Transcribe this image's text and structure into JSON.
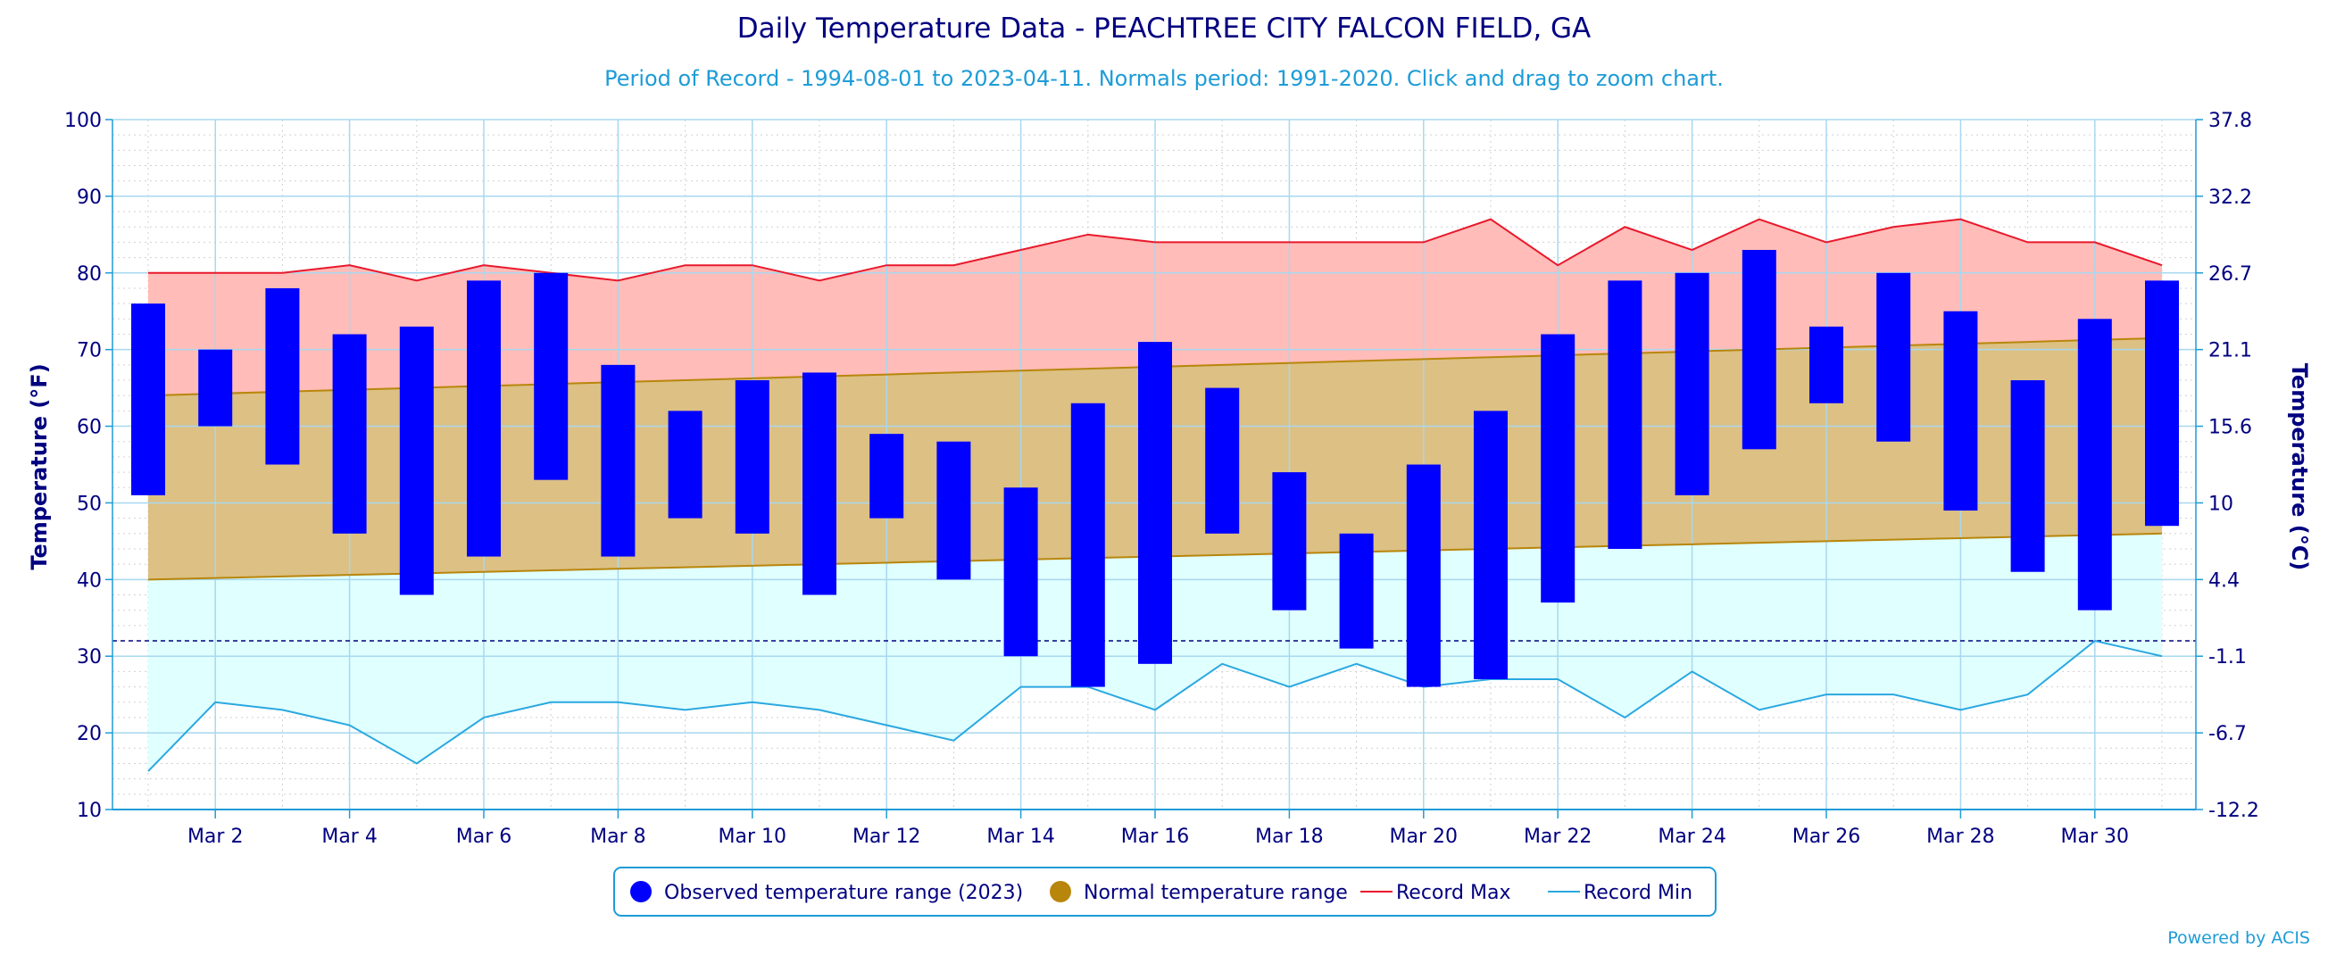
{
  "chart_data": {
    "type": "bar",
    "title": "Daily Temperature Data - PEACHTREE CITY FALCON FIELD, GA",
    "subtitle": "Period of Record - 1994-08-01 to 2023-04-11. Normals period: 1991-2020. Click and drag to zoom chart.",
    "credit": "Powered by ACIS",
    "ylabel": "Temperature (°F)",
    "ylabel_right": "Temperature (°C)",
    "ylim": [
      10,
      100
    ],
    "yticks": [
      10,
      20,
      30,
      40,
      50,
      60,
      70,
      80,
      90,
      100
    ],
    "yticks_right": [
      "-12.2",
      "-6.7",
      "-1.1",
      "4.4",
      "10",
      "15.6",
      "21.1",
      "26.7",
      "32.2",
      "37.8"
    ],
    "freezing_line": 32,
    "days": [
      1,
      2,
      3,
      4,
      5,
      6,
      7,
      8,
      9,
      10,
      11,
      12,
      13,
      14,
      15,
      16,
      17,
      18,
      19,
      20,
      21,
      22,
      23,
      24,
      25,
      26,
      27,
      28,
      29,
      30,
      31
    ],
    "xtick_days": [
      2,
      4,
      6,
      8,
      10,
      12,
      14,
      16,
      18,
      20,
      22,
      24,
      26,
      28,
      30
    ],
    "xtick_labels": [
      "Mar 2",
      "Mar 4",
      "Mar 6",
      "Mar 8",
      "Mar 10",
      "Mar 12",
      "Mar 14",
      "Mar 16",
      "Mar 18",
      "Mar 20",
      "Mar 22",
      "Mar 24",
      "Mar 26",
      "Mar 28",
      "Mar 30"
    ],
    "grid": true,
    "legend_position": "bottom-center",
    "series": [
      {
        "name": "Observed temperature range (2023)",
        "type": "range-bar",
        "color": "#0000ff",
        "low": [
          51,
          60,
          55,
          46,
          38,
          43,
          53,
          43,
          48,
          46,
          38,
          48,
          40,
          30,
          26,
          29,
          46,
          36,
          31,
          26,
          27,
          37,
          44,
          51,
          57,
          63,
          58,
          49,
          41,
          36,
          47
        ],
        "high": [
          76,
          70,
          78,
          72,
          73,
          79,
          80,
          68,
          62,
          66,
          67,
          59,
          58,
          52,
          63,
          71,
          65,
          54,
          46,
          55,
          62,
          72,
          79,
          80,
          83,
          73,
          80,
          75,
          66,
          74,
          79
        ]
      },
      {
        "name": "Normal temperature range",
        "type": "area-range",
        "color": "#b8860b",
        "fill": "#dcc084",
        "low": [
          40,
          40.2,
          40.4,
          40.6,
          40.8,
          41,
          41.2,
          41.4,
          41.6,
          41.8,
          42,
          42.2,
          42.4,
          42.6,
          42.8,
          43,
          43.2,
          43.4,
          43.6,
          43.8,
          44,
          44.2,
          44.4,
          44.6,
          44.8,
          45,
          45.2,
          45.4,
          45.6,
          45.8,
          46
        ],
        "high": [
          64,
          64.25,
          64.5,
          64.75,
          65,
          65.25,
          65.5,
          65.75,
          66,
          66.25,
          66.5,
          66.75,
          67,
          67.25,
          67.5,
          67.75,
          68,
          68.25,
          68.5,
          68.75,
          69,
          69.25,
          69.5,
          69.75,
          70,
          70.25,
          70.5,
          70.75,
          71,
          71.25,
          71.5
        ]
      },
      {
        "name": "Record Max",
        "type": "line",
        "color": "#e8192c",
        "fill": "#ffbcb8",
        "values": [
          80,
          80,
          80,
          81,
          79,
          81,
          80,
          79,
          81,
          81,
          79,
          81,
          81,
          83,
          85,
          84,
          84,
          84,
          84,
          84,
          87,
          81,
          86,
          83,
          87,
          84,
          86,
          87,
          84,
          84,
          81
        ]
      },
      {
        "name": "Record Min",
        "type": "line",
        "color": "#2aa8e0",
        "fill": "#e0ffff",
        "values": [
          15,
          24,
          23,
          21,
          16,
          22,
          24,
          24,
          23,
          24,
          23,
          21,
          19,
          26,
          26,
          23,
          29,
          26,
          29,
          26,
          27,
          27,
          22,
          28,
          23,
          25,
          25,
          23,
          25,
          32,
          30
        ]
      }
    ]
  }
}
